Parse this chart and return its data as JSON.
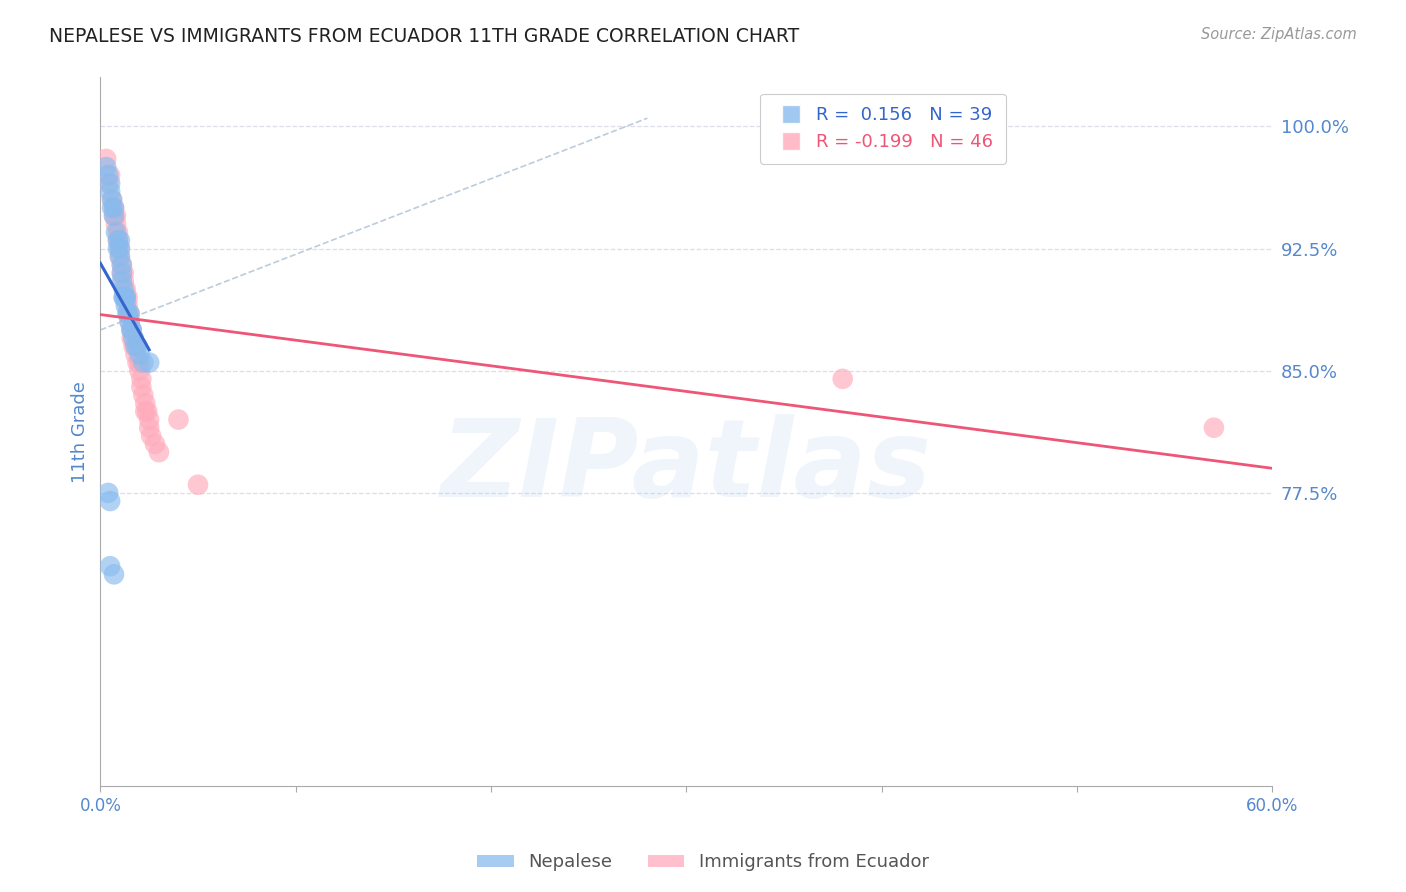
{
  "title": "NEPALESE VS IMMIGRANTS FROM ECUADOR 11TH GRADE CORRELATION CHART",
  "source": "Source: ZipAtlas.com",
  "ylabel": "11th Grade",
  "ytick_values": [
    0.775,
    0.85,
    0.925,
    1.0
  ],
  "xmin": 0.0,
  "xmax": 0.6,
  "ymin": 0.595,
  "ymax": 1.03,
  "legend_blue_r": "0.156",
  "legend_blue_n": "39",
  "legend_pink_r": "-0.199",
  "legend_pink_n": "46",
  "blue_color": "#88BBEE",
  "pink_color": "#FFAABB",
  "trendline_blue_color": "#3366CC",
  "trendline_pink_color": "#EE5577",
  "blue_scatter_x": [
    0.003,
    0.004,
    0.005,
    0.005,
    0.006,
    0.006,
    0.007,
    0.007,
    0.008,
    0.009,
    0.009,
    0.01,
    0.01,
    0.01,
    0.011,
    0.011,
    0.011,
    0.012,
    0.012,
    0.012,
    0.013,
    0.013,
    0.013,
    0.014,
    0.014,
    0.015,
    0.015,
    0.016,
    0.016,
    0.017,
    0.018,
    0.019,
    0.02,
    0.022,
    0.025,
    0.004,
    0.005,
    0.005,
    0.007
  ],
  "blue_scatter_y": [
    0.975,
    0.97,
    0.965,
    0.96,
    0.955,
    0.95,
    0.95,
    0.945,
    0.935,
    0.93,
    0.925,
    0.93,
    0.925,
    0.92,
    0.915,
    0.91,
    0.905,
    0.9,
    0.895,
    0.895,
    0.895,
    0.895,
    0.89,
    0.885,
    0.885,
    0.885,
    0.88,
    0.875,
    0.875,
    0.87,
    0.865,
    0.865,
    0.86,
    0.855,
    0.855,
    0.775,
    0.77,
    0.73,
    0.725
  ],
  "pink_scatter_x": [
    0.003,
    0.004,
    0.005,
    0.006,
    0.007,
    0.007,
    0.008,
    0.008,
    0.009,
    0.009,
    0.01,
    0.01,
    0.011,
    0.011,
    0.012,
    0.012,
    0.013,
    0.013,
    0.014,
    0.014,
    0.015,
    0.015,
    0.016,
    0.016,
    0.017,
    0.017,
    0.018,
    0.018,
    0.019,
    0.02,
    0.02,
    0.021,
    0.021,
    0.022,
    0.023,
    0.023,
    0.024,
    0.025,
    0.025,
    0.026,
    0.028,
    0.03,
    0.04,
    0.05,
    0.38,
    0.57
  ],
  "pink_scatter_y": [
    0.98,
    0.965,
    0.97,
    0.955,
    0.95,
    0.945,
    0.945,
    0.94,
    0.935,
    0.93,
    0.925,
    0.92,
    0.915,
    0.91,
    0.91,
    0.905,
    0.9,
    0.895,
    0.895,
    0.89,
    0.885,
    0.88,
    0.875,
    0.87,
    0.87,
    0.865,
    0.865,
    0.86,
    0.855,
    0.855,
    0.85,
    0.845,
    0.84,
    0.835,
    0.83,
    0.825,
    0.825,
    0.82,
    0.815,
    0.81,
    0.805,
    0.8,
    0.82,
    0.78,
    0.845,
    0.815
  ],
  "background_color": "#ffffff",
  "grid_color": "#ddddee",
  "axis_color": "#aaaaaa",
  "title_color": "#222222",
  "source_color": "#999999",
  "label_color": "#5588CC",
  "watermark_text": "ZIPatlas",
  "watermark_color": "#AACCEE",
  "watermark_alpha": 0.18
}
